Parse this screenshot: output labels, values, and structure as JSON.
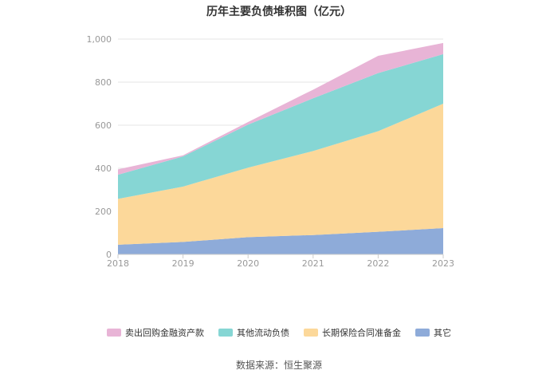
{
  "chart_data": {
    "type": "area",
    "stacked": true,
    "title": "历年主要负债堆积图（亿元）",
    "x": [
      "2018",
      "2019",
      "2020",
      "2021",
      "2022",
      "2023"
    ],
    "ylim": [
      0,
      1000
    ],
    "yticks": [
      "0",
      "200",
      "400",
      "600",
      "800",
      "1,000"
    ],
    "grid": true,
    "legend_position": "bottom",
    "series": [
      {
        "name": "其它",
        "color": "#8eabd9",
        "values": [
          45,
          58,
          80,
          90,
          105,
          122
        ]
      },
      {
        "name": "长期保险合同准备金",
        "color": "#fcd89a",
        "values": [
          213,
          257,
          323,
          390,
          467,
          578
        ]
      },
      {
        "name": "其他流动负债",
        "color": "#86d6d4",
        "values": [
          112,
          140,
          200,
          245,
          270,
          230
        ]
      },
      {
        "name": "卖出回购金融资产款",
        "color": "#e8b4d6",
        "values": [
          25,
          5,
          12,
          40,
          80,
          52
        ]
      }
    ],
    "legend_order": [
      "卖出回购金融资产款",
      "其他流动负债",
      "长期保险合同准备金",
      "其它"
    ]
  },
  "source": "数据来源：恒生聚源"
}
